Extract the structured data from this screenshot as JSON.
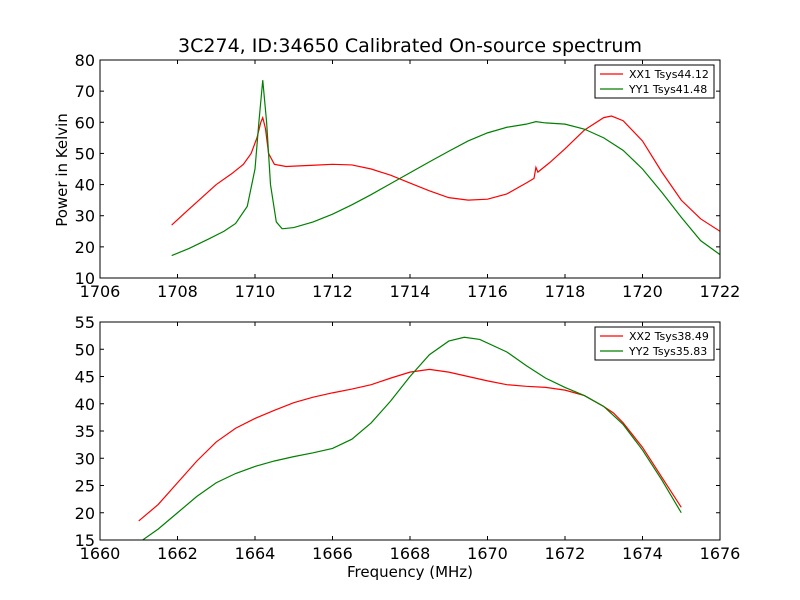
{
  "chart_data": {
    "title": "3C274, ID:34650 Calibrated On-source spectrum",
    "ylabel": "Power in Kelvin",
    "xlabel": "Frequency (MHz)",
    "panels": [
      {
        "type": "line",
        "xlim": [
          1706,
          1722
        ],
        "ylim": [
          10,
          80
        ],
        "xticks": [
          1706,
          1708,
          1710,
          1712,
          1714,
          1716,
          1718,
          1720,
          1722
        ],
        "yticks": [
          10,
          20,
          30,
          40,
          50,
          60,
          70,
          80
        ],
        "legend_position": "top-right",
        "series": [
          {
            "name": "XX1 Tsys44.12",
            "color": "#ff0000",
            "points": [
              [
                1707.85,
                27.0
              ],
              [
                1708.2,
                31.0
              ],
              [
                1708.6,
                35.5
              ],
              [
                1709.0,
                40.0
              ],
              [
                1709.4,
                43.5
              ],
              [
                1709.7,
                46.5
              ],
              [
                1709.9,
                50.0
              ],
              [
                1710.05,
                55.0
              ],
              [
                1710.15,
                60.0
              ],
              [
                1710.2,
                61.5
              ],
              [
                1710.27,
                58.0
              ],
              [
                1710.35,
                50.0
              ],
              [
                1710.5,
                46.5
              ],
              [
                1710.8,
                45.8
              ],
              [
                1711.5,
                46.2
              ],
              [
                1712.0,
                46.5
              ],
              [
                1712.5,
                46.3
              ],
              [
                1713.0,
                45.0
              ],
              [
                1713.5,
                43.0
              ],
              [
                1714.0,
                40.5
              ],
              [
                1714.5,
                38.0
              ],
              [
                1715.0,
                35.8
              ],
              [
                1715.5,
                35.0
              ],
              [
                1716.0,
                35.3
              ],
              [
                1716.5,
                37.0
              ],
              [
                1717.0,
                40.5
              ],
              [
                1717.2,
                42.0
              ],
              [
                1717.25,
                45.5
              ],
              [
                1717.3,
                44.0
              ],
              [
                1717.6,
                47.0
              ],
              [
                1718.0,
                51.5
              ],
              [
                1718.5,
                57.5
              ],
              [
                1719.0,
                61.5
              ],
              [
                1719.2,
                62.0
              ],
              [
                1719.5,
                60.5
              ],
              [
                1720.0,
                54.0
              ],
              [
                1720.5,
                44.0
              ],
              [
                1721.0,
                35.0
              ],
              [
                1721.5,
                29.0
              ],
              [
                1722.0,
                25.0
              ]
            ]
          },
          {
            "name": "YY1 Tsys41.48",
            "color": "#008000",
            "points": [
              [
                1707.85,
                17.2
              ],
              [
                1708.3,
                19.5
              ],
              [
                1708.8,
                22.5
              ],
              [
                1709.2,
                25.0
              ],
              [
                1709.5,
                27.5
              ],
              [
                1709.8,
                33.0
              ],
              [
                1710.0,
                45.0
              ],
              [
                1710.1,
                60.0
              ],
              [
                1710.2,
                73.5
              ],
              [
                1710.3,
                60.0
              ],
              [
                1710.4,
                40.0
              ],
              [
                1710.55,
                28.0
              ],
              [
                1710.7,
                25.8
              ],
              [
                1711.0,
                26.2
              ],
              [
                1711.5,
                28.0
              ],
              [
                1712.0,
                30.5
              ],
              [
                1712.5,
                33.5
              ],
              [
                1713.0,
                36.8
              ],
              [
                1713.5,
                40.3
              ],
              [
                1714.0,
                43.8
              ],
              [
                1714.5,
                47.3
              ],
              [
                1715.0,
                50.7
              ],
              [
                1715.5,
                54.0
              ],
              [
                1716.0,
                56.6
              ],
              [
                1716.5,
                58.4
              ],
              [
                1717.0,
                59.4
              ],
              [
                1717.25,
                60.2
              ],
              [
                1717.5,
                59.8
              ],
              [
                1718.0,
                59.4
              ],
              [
                1718.5,
                57.8
              ],
              [
                1719.0,
                55.0
              ],
              [
                1719.5,
                51.0
              ],
              [
                1720.0,
                45.0
              ],
              [
                1720.5,
                37.5
              ],
              [
                1721.0,
                29.5
              ],
              [
                1721.5,
                22.0
              ],
              [
                1722.0,
                17.5
              ]
            ]
          }
        ]
      },
      {
        "type": "line",
        "xlim": [
          1660,
          1676
        ],
        "ylim": [
          15,
          55
        ],
        "xticks": [
          1660,
          1662,
          1664,
          1666,
          1668,
          1670,
          1672,
          1674,
          1676
        ],
        "yticks": [
          15,
          20,
          25,
          30,
          35,
          40,
          45,
          50,
          55
        ],
        "legend_position": "top-right",
        "series": [
          {
            "name": "XX2 Tsys38.49",
            "color": "#ff0000",
            "points": [
              [
                1661.0,
                18.5
              ],
              [
                1661.5,
                21.5
              ],
              [
                1662.0,
                25.5
              ],
              [
                1662.5,
                29.5
              ],
              [
                1663.0,
                33.0
              ],
              [
                1663.5,
                35.5
              ],
              [
                1664.0,
                37.3
              ],
              [
                1664.5,
                38.8
              ],
              [
                1665.0,
                40.2
              ],
              [
                1665.5,
                41.2
              ],
              [
                1666.0,
                42.0
              ],
              [
                1666.5,
                42.7
              ],
              [
                1667.0,
                43.5
              ],
              [
                1667.5,
                44.7
              ],
              [
                1668.0,
                45.8
              ],
              [
                1668.5,
                46.3
              ],
              [
                1669.0,
                45.8
              ],
              [
                1669.5,
                45.0
              ],
              [
                1670.0,
                44.2
              ],
              [
                1670.5,
                43.5
              ],
              [
                1671.0,
                43.2
              ],
              [
                1671.5,
                43.0
              ],
              [
                1672.0,
                42.5
              ],
              [
                1672.5,
                41.5
              ],
              [
                1673.0,
                39.5
              ],
              [
                1673.25,
                38.3
              ],
              [
                1673.5,
                36.5
              ],
              [
                1674.0,
                32.0
              ],
              [
                1674.5,
                26.5
              ],
              [
                1675.0,
                21.0
              ]
            ]
          },
          {
            "name": "YY2 Tsys35.83",
            "color": "#008000",
            "points": [
              [
                1661.0,
                14.5
              ],
              [
                1661.5,
                17.0
              ],
              [
                1662.0,
                20.0
              ],
              [
                1662.5,
                23.0
              ],
              [
                1663.0,
                25.5
              ],
              [
                1663.5,
                27.2
              ],
              [
                1664.0,
                28.5
              ],
              [
                1664.5,
                29.5
              ],
              [
                1665.0,
                30.3
              ],
              [
                1665.5,
                31.0
              ],
              [
                1666.0,
                31.8
              ],
              [
                1666.5,
                33.5
              ],
              [
                1667.0,
                36.5
              ],
              [
                1667.5,
                40.5
              ],
              [
                1668.0,
                45.0
              ],
              [
                1668.5,
                49.0
              ],
              [
                1669.0,
                51.5
              ],
              [
                1669.4,
                52.2
              ],
              [
                1669.8,
                51.8
              ],
              [
                1670.5,
                49.5
              ],
              [
                1671.0,
                47.0
              ],
              [
                1671.5,
                44.7
              ],
              [
                1672.0,
                43.0
              ],
              [
                1672.5,
                41.5
              ],
              [
                1673.0,
                39.5
              ],
              [
                1673.5,
                36.2
              ],
              [
                1674.0,
                31.5
              ],
              [
                1674.5,
                26.0
              ],
              [
                1675.0,
                20.0
              ]
            ]
          }
        ]
      }
    ]
  }
}
